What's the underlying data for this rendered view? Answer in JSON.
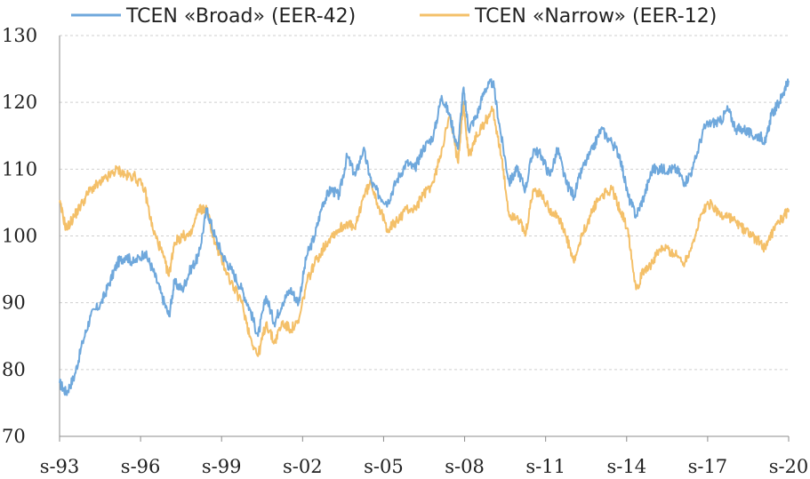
{
  "chart_data": {
    "type": "line",
    "title": "",
    "xlabel": "",
    "ylabel": "",
    "ylim": [
      70,
      130
    ],
    "yticks": [
      70,
      80,
      90,
      100,
      110,
      120,
      130
    ],
    "xlim": [
      1993.75,
      2020.75
    ],
    "xticks": [
      {
        "x": 1993.75,
        "label": "s-93"
      },
      {
        "x": 1996.75,
        "label": "s-96"
      },
      {
        "x": 1999.75,
        "label": "s-99"
      },
      {
        "x": 2002.75,
        "label": "s-02"
      },
      {
        "x": 2005.75,
        "label": "s-05"
      },
      {
        "x": 2008.75,
        "label": "s-08"
      },
      {
        "x": 2011.75,
        "label": "s-11"
      },
      {
        "x": 2014.75,
        "label": "s-14"
      },
      {
        "x": 2017.75,
        "label": "s-17"
      },
      {
        "x": 2020.75,
        "label": "s-20"
      }
    ],
    "grid": true,
    "legend": "top",
    "series": [
      {
        "name": "TCEN «Broad» (EER-42)",
        "color": "#6fa8dc",
        "points": [
          [
            1993.75,
            78
          ],
          [
            1994.0,
            76.5
          ],
          [
            1994.3,
            79
          ],
          [
            1994.6,
            84
          ],
          [
            1994.9,
            88
          ],
          [
            1995.3,
            90
          ],
          [
            1995.6,
            93
          ],
          [
            1995.9,
            96
          ],
          [
            1996.2,
            97
          ],
          [
            1996.5,
            96
          ],
          [
            1996.9,
            97.5
          ],
          [
            1997.2,
            95
          ],
          [
            1997.5,
            91.5
          ],
          [
            1997.8,
            88
          ],
          [
            1998.0,
            93
          ],
          [
            1998.3,
            92
          ],
          [
            1998.6,
            95
          ],
          [
            1998.9,
            97
          ],
          [
            1999.2,
            104
          ],
          [
            1999.5,
            100
          ],
          [
            1999.8,
            97
          ],
          [
            2000.1,
            95
          ],
          [
            2000.5,
            92
          ],
          [
            2000.8,
            89
          ],
          [
            2001.1,
            85
          ],
          [
            2001.4,
            91
          ],
          [
            2001.7,
            87
          ],
          [
            2002.0,
            90
          ],
          [
            2002.3,
            92
          ],
          [
            2002.6,
            90
          ],
          [
            2002.9,
            97
          ],
          [
            2003.2,
            100
          ],
          [
            2003.5,
            105
          ],
          [
            2003.8,
            107
          ],
          [
            2004.1,
            106
          ],
          [
            2004.4,
            112
          ],
          [
            2004.7,
            109
          ],
          [
            2005.0,
            113
          ],
          [
            2005.3,
            108
          ],
          [
            2005.6,
            106
          ],
          [
            2005.9,
            105
          ],
          [
            2006.2,
            108
          ],
          [
            2006.6,
            111
          ],
          [
            2006.9,
            110
          ],
          [
            2007.2,
            113
          ],
          [
            2007.6,
            115
          ],
          [
            2007.9,
            121
          ],
          [
            2008.2,
            118
          ],
          [
            2008.5,
            113
          ],
          [
            2008.7,
            122
          ],
          [
            2008.9,
            116
          ],
          [
            2009.2,
            118
          ],
          [
            2009.5,
            122
          ],
          [
            2009.8,
            123
          ],
          [
            2010.1,
            115
          ],
          [
            2010.4,
            108
          ],
          [
            2010.7,
            110
          ],
          [
            2011.0,
            107
          ],
          [
            2011.3,
            113
          ],
          [
            2011.6,
            112
          ],
          [
            2011.9,
            109
          ],
          [
            2012.2,
            113
          ],
          [
            2012.5,
            108
          ],
          [
            2012.8,
            106
          ],
          [
            2013.1,
            110
          ],
          [
            2013.5,
            113
          ],
          [
            2013.8,
            116
          ],
          [
            2014.2,
            114
          ],
          [
            2014.5,
            112
          ],
          [
            2014.8,
            106
          ],
          [
            2015.1,
            103
          ],
          [
            2015.4,
            106
          ],
          [
            2015.7,
            110
          ],
          [
            2016.0,
            110
          ],
          [
            2016.3,
            110
          ],
          [
            2016.6,
            110
          ],
          [
            2016.9,
            108
          ],
          [
            2017.2,
            110
          ],
          [
            2017.6,
            116
          ],
          [
            2017.9,
            117
          ],
          [
            2018.2,
            117
          ],
          [
            2018.5,
            119
          ],
          [
            2018.8,
            116
          ],
          [
            2019.1,
            116
          ],
          [
            2019.4,
            115
          ],
          [
            2019.7,
            115
          ],
          [
            2019.9,
            114
          ],
          [
            2020.1,
            118
          ],
          [
            2020.4,
            120
          ],
          [
            2020.6,
            122
          ],
          [
            2020.75,
            123
          ]
        ]
      },
      {
        "name": "TCEN «Narrow» (EER-12)",
        "color": "#f4c069",
        "points": [
          [
            1993.75,
            105
          ],
          [
            1994.0,
            101
          ],
          [
            1994.3,
            103
          ],
          [
            1994.6,
            105
          ],
          [
            1994.9,
            107
          ],
          [
            1995.3,
            108
          ],
          [
            1995.6,
            109
          ],
          [
            1995.9,
            110
          ],
          [
            1996.2,
            109
          ],
          [
            1996.5,
            109
          ],
          [
            1996.9,
            107
          ],
          [
            1997.2,
            101
          ],
          [
            1997.5,
            98
          ],
          [
            1997.8,
            94
          ],
          [
            1998.0,
            99
          ],
          [
            1998.3,
            100
          ],
          [
            1998.6,
            100
          ],
          [
            1998.9,
            104
          ],
          [
            1999.2,
            104
          ],
          [
            1999.5,
            99
          ],
          [
            1999.8,
            96
          ],
          [
            2000.1,
            93
          ],
          [
            2000.5,
            90
          ],
          [
            2000.8,
            85
          ],
          [
            2001.1,
            82
          ],
          [
            2001.4,
            87
          ],
          [
            2001.7,
            84
          ],
          [
            2002.0,
            87
          ],
          [
            2002.3,
            86
          ],
          [
            2002.6,
            87
          ],
          [
            2002.9,
            93
          ],
          [
            2003.2,
            96
          ],
          [
            2003.5,
            98
          ],
          [
            2003.8,
            100
          ],
          [
            2004.1,
            101
          ],
          [
            2004.4,
            102
          ],
          [
            2004.7,
            101
          ],
          [
            2005.0,
            106
          ],
          [
            2005.3,
            108
          ],
          [
            2005.6,
            104
          ],
          [
            2005.9,
            101
          ],
          [
            2006.2,
            102
          ],
          [
            2006.6,
            104
          ],
          [
            2006.9,
            104
          ],
          [
            2007.2,
            106
          ],
          [
            2007.6,
            108
          ],
          [
            2007.9,
            113
          ],
          [
            2008.2,
            118
          ],
          [
            2008.5,
            111
          ],
          [
            2008.7,
            120
          ],
          [
            2008.9,
            112
          ],
          [
            2009.2,
            115
          ],
          [
            2009.5,
            117
          ],
          [
            2009.8,
            119
          ],
          [
            2010.1,
            112
          ],
          [
            2010.4,
            103
          ],
          [
            2010.7,
            103
          ],
          [
            2011.0,
            100
          ],
          [
            2011.3,
            107
          ],
          [
            2011.6,
            106
          ],
          [
            2011.9,
            104
          ],
          [
            2012.2,
            103
          ],
          [
            2012.5,
            100
          ],
          [
            2012.8,
            96
          ],
          [
            2013.1,
            100
          ],
          [
            2013.5,
            104
          ],
          [
            2013.8,
            106
          ],
          [
            2014.2,
            107
          ],
          [
            2014.5,
            104
          ],
          [
            2014.8,
            101
          ],
          [
            2015.1,
            92
          ],
          [
            2015.4,
            95
          ],
          [
            2015.7,
            96
          ],
          [
            2016.0,
            98
          ],
          [
            2016.3,
            98
          ],
          [
            2016.6,
            97
          ],
          [
            2016.9,
            96
          ],
          [
            2017.2,
            99
          ],
          [
            2017.6,
            104
          ],
          [
            2017.9,
            105
          ],
          [
            2018.2,
            103
          ],
          [
            2018.5,
            103
          ],
          [
            2018.8,
            102
          ],
          [
            2019.1,
            101
          ],
          [
            2019.4,
            100
          ],
          [
            2019.7,
            99
          ],
          [
            2019.9,
            98
          ],
          [
            2020.1,
            100
          ],
          [
            2020.4,
            102
          ],
          [
            2020.6,
            103
          ],
          [
            2020.75,
            104
          ]
        ]
      }
    ]
  }
}
